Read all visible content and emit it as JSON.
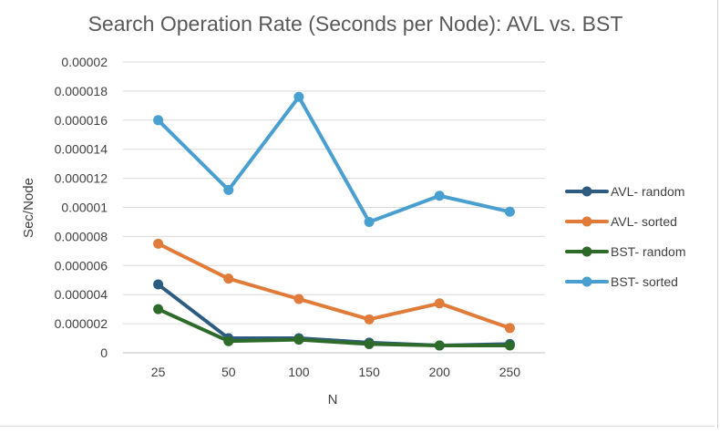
{
  "chart_data": {
    "type": "line",
    "title": "Search Operation Rate (Seconds per Node): AVL vs. BST",
    "xlabel": "N",
    "ylabel": "Sec/Node",
    "categories": [
      "25",
      "50",
      "100",
      "150",
      "200",
      "250"
    ],
    "ylim": [
      0,
      2e-05
    ],
    "yticks": [
      "0",
      "0.000002",
      "0.000004",
      "0.000006",
      "0.000008",
      "0.00001",
      "0.000012",
      "0.000014",
      "0.000016",
      "0.000018",
      "0.00002"
    ],
    "grid": true,
    "legend_position": "right",
    "series": [
      {
        "name": "AVL- random",
        "color": "#2e5c80",
        "values": [
          4.7e-06,
          1e-06,
          1e-06,
          7e-07,
          5e-07,
          6e-07
        ]
      },
      {
        "name": "AVL- sorted",
        "color": "#e07b39",
        "values": [
          7.5e-06,
          5.1e-06,
          3.7e-06,
          2.3e-06,
          3.4e-06,
          1.7e-06
        ]
      },
      {
        "name": "BST- random",
        "color": "#2e6b2a",
        "values": [
          3e-06,
          8e-07,
          9e-07,
          6e-07,
          5e-07,
          5e-07
        ]
      },
      {
        "name": "BST- sorted",
        "color": "#4a9fd1",
        "values": [
          1.6e-05,
          1.12e-05,
          1.76e-05,
          9e-06,
          1.08e-05,
          9.7e-06
        ]
      }
    ]
  }
}
